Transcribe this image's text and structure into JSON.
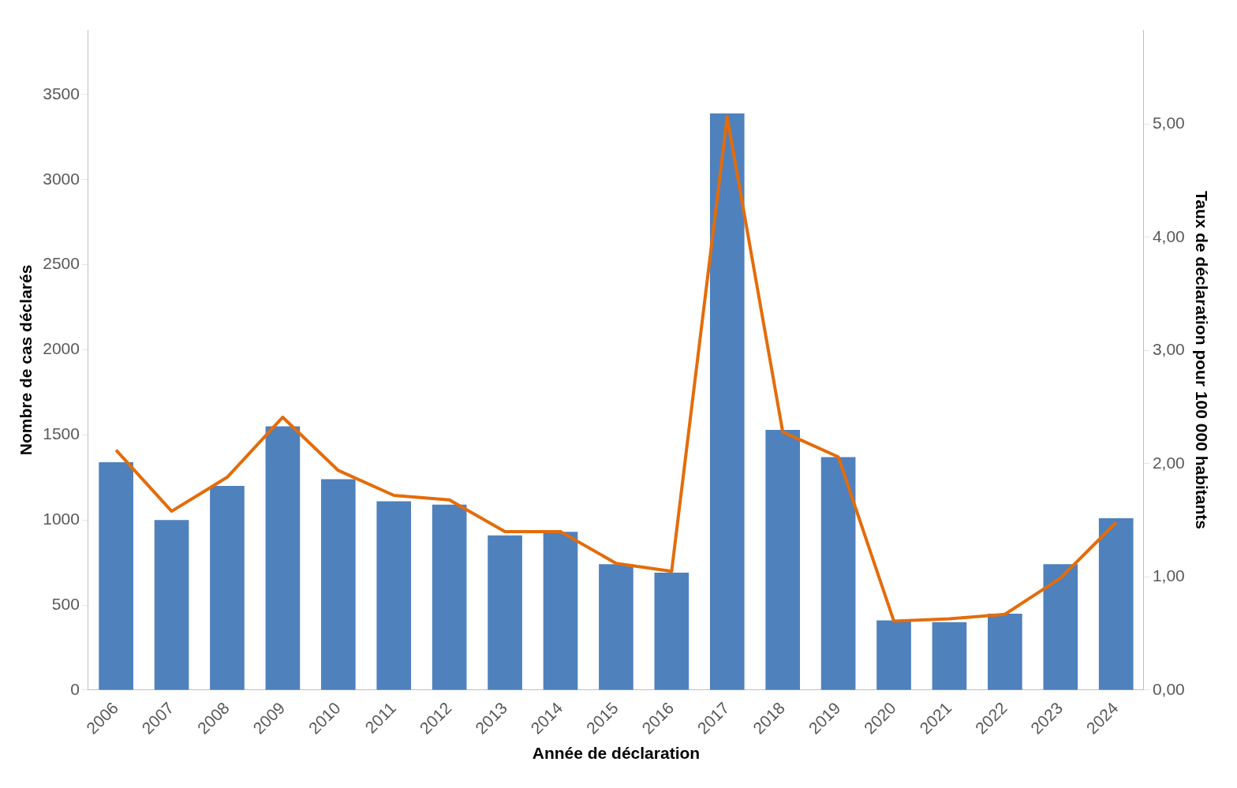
{
  "chart_data": {
    "type": "bar",
    "xlabel": "Année de déclaration",
    "ylabel": "Nombre de cas déclarés",
    "y2label": "Taux de déclaration pour 100 000 habitants",
    "categories": [
      "2006",
      "2007",
      "2008",
      "2009",
      "2010",
      "2011",
      "2012",
      "2013",
      "2014",
      "2015",
      "2016",
      "2017",
      "2018",
      "2019",
      "2020",
      "2021",
      "2022",
      "2023",
      "2024"
    ],
    "series": [
      {
        "color": "#4f81bd",
        "values": [
          1340,
          1000,
          1200,
          1550,
          1240,
          1110,
          1090,
          910,
          930,
          740,
          690,
          3390,
          1530,
          1370,
          410,
          400,
          450,
          740,
          1010
        ]
      },
      {
        "type": "line",
        "axis": "y2",
        "color": "#e46c0a",
        "marker": "none",
        "line_style": "solid",
        "values": [
          2.12,
          1.58,
          1.88,
          2.41,
          1.94,
          1.72,
          1.68,
          1.4,
          1.4,
          1.12,
          1.05,
          5.06,
          2.28,
          2.06,
          0.61,
          0.63,
          0.67,
          0.99,
          1.48
        ]
      }
    ],
    "ylim": [
      0,
      3880
    ],
    "yticks": [
      0,
      500,
      1000,
      1500,
      2000,
      2500,
      3000,
      3500
    ],
    "y2lim": [
      0,
      5.83
    ],
    "y2ticks": [
      {
        "value": 0,
        "label": "0,00"
      },
      {
        "value": 1,
        "label": "1,00"
      },
      {
        "value": 2,
        "label": "2,00"
      },
      {
        "value": 3,
        "label": "3,00"
      },
      {
        "value": 4,
        "label": "4,00"
      },
      {
        "value": 5,
        "label": "5,00"
      }
    ],
    "grid": false,
    "legend": false
  }
}
